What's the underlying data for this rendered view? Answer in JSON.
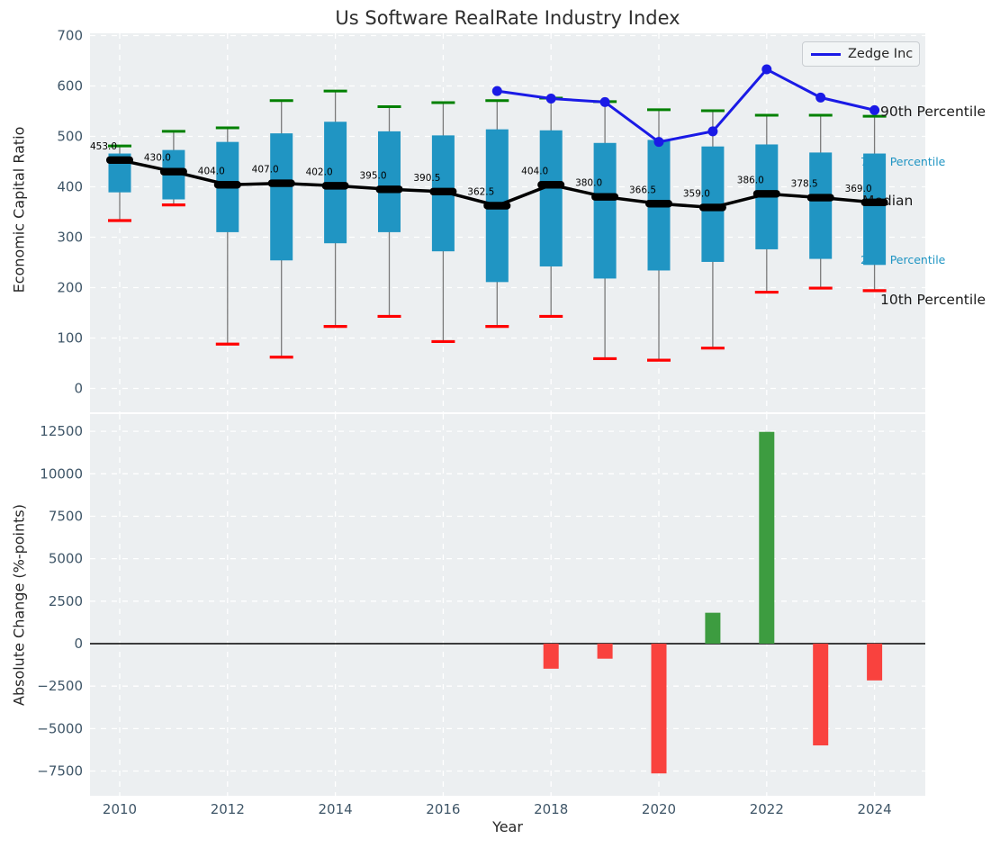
{
  "figure": {
    "background": "#ffffff",
    "plot_background": "#eceff1",
    "grid_color": "#ffffff",
    "tick_color": "#3f5668",
    "label_color": "#262626",
    "title_color": "#2e2e2e"
  },
  "legend": {
    "label": "Zedge Inc"
  },
  "annotations": {
    "p90": "90th Percentile",
    "p75": "75th Percentile",
    "median": "Median",
    "p25": "25th Percentile",
    "p10": "10th Percentile"
  },
  "colors": {
    "box": "#2095c3",
    "whisker": "#7a7a7a",
    "cap_high": "#008000",
    "cap_low": "#ff0000",
    "median_line": "#000000",
    "zedge_line": "#1a1ae6",
    "bar_positive": "#3d9c40",
    "bar_negative": "#f9423e",
    "percentile_label_small": "#2095c3",
    "percentile_label_large": "#1a1a1a"
  },
  "chart_data": [
    {
      "type": "boxplot+line",
      "title": "Us Software RealRate Industry Index",
      "ylabel": "Economic Capital Ratio",
      "ylim": [
        -45,
        706
      ],
      "yticks": [
        0,
        100,
        200,
        300,
        400,
        500,
        600,
        700
      ],
      "ytick_labels": [
        "0",
        "100",
        "200",
        "300",
        "400",
        "500",
        "600",
        "700"
      ],
      "xticks": [
        2010,
        2012,
        2014,
        2016,
        2018,
        2020,
        2022,
        2024
      ],
      "xtick_labels_visible": false,
      "grid": true,
      "years": [
        2010,
        2011,
        2012,
        2013,
        2014,
        2015,
        2016,
        2017,
        2018,
        2019,
        2020,
        2021,
        2022,
        2023,
        2024
      ],
      "p10": [
        333,
        364,
        88,
        62,
        123,
        143,
        93,
        123,
        143,
        59,
        56,
        80,
        191,
        199,
        194
      ],
      "p25": [
        389,
        375,
        310,
        254,
        288,
        310,
        272,
        211,
        242,
        218,
        234,
        251,
        276,
        257,
        245
      ],
      "median": [
        453.0,
        430.0,
        404.0,
        407.0,
        402.0,
        395.0,
        390.5,
        362.5,
        404.0,
        380.0,
        366.5,
        359.0,
        386.0,
        378.5,
        369.0
      ],
      "p75": [
        466,
        473,
        489,
        506,
        529,
        510,
        502,
        514,
        512,
        487,
        493,
        480,
        484,
        468,
        466
      ],
      "p90": [
        481,
        510,
        517,
        571,
        590,
        559,
        567,
        571,
        576,
        569,
        553,
        551,
        542,
        542,
        540
      ],
      "median_labels": [
        "453.0",
        "430.0",
        "404.0",
        "407.0",
        "402.0",
        "395.0",
        "390.5",
        "362.5",
        "404.0",
        "380.0",
        "366.5",
        "359.0",
        "386.0",
        "378.5",
        "369.0"
      ],
      "series": [
        {
          "name": "Zedge Inc",
          "x": [
            2017,
            2018,
            2019,
            2020,
            2021,
            2022,
            2023,
            2024
          ],
          "values": [
            590,
            575,
            568,
            489,
            510,
            633,
            577,
            552
          ]
        }
      ],
      "legend_position": "upper right"
    },
    {
      "type": "bar",
      "ylabel": "Absolute Change (%-points)",
      "xlabel": "Year",
      "ylim": [
        -8950,
        13520
      ],
      "yticks": [
        12500,
        10000,
        7500,
        5000,
        2500,
        0,
        -2500,
        -5000,
        -7500
      ],
      "ytick_labels": [
        "12500",
        "10000",
        "7500",
        "5000",
        "2500",
        "0",
        "−2500",
        "−5000",
        "−7500"
      ],
      "xticks": [
        2010,
        2012,
        2014,
        2016,
        2018,
        2020,
        2022,
        2024
      ],
      "xtick_labels": [
        "2010",
        "2012",
        "2014",
        "2016",
        "2018",
        "2020",
        "2022",
        "2024"
      ],
      "grid": true,
      "categories": [
        2018,
        2019,
        2020,
        2021,
        2022,
        2023,
        2024
      ],
      "values": [
        -1475,
        -885,
        -7640,
        1820,
        12470,
        -5990,
        -2165
      ]
    }
  ]
}
